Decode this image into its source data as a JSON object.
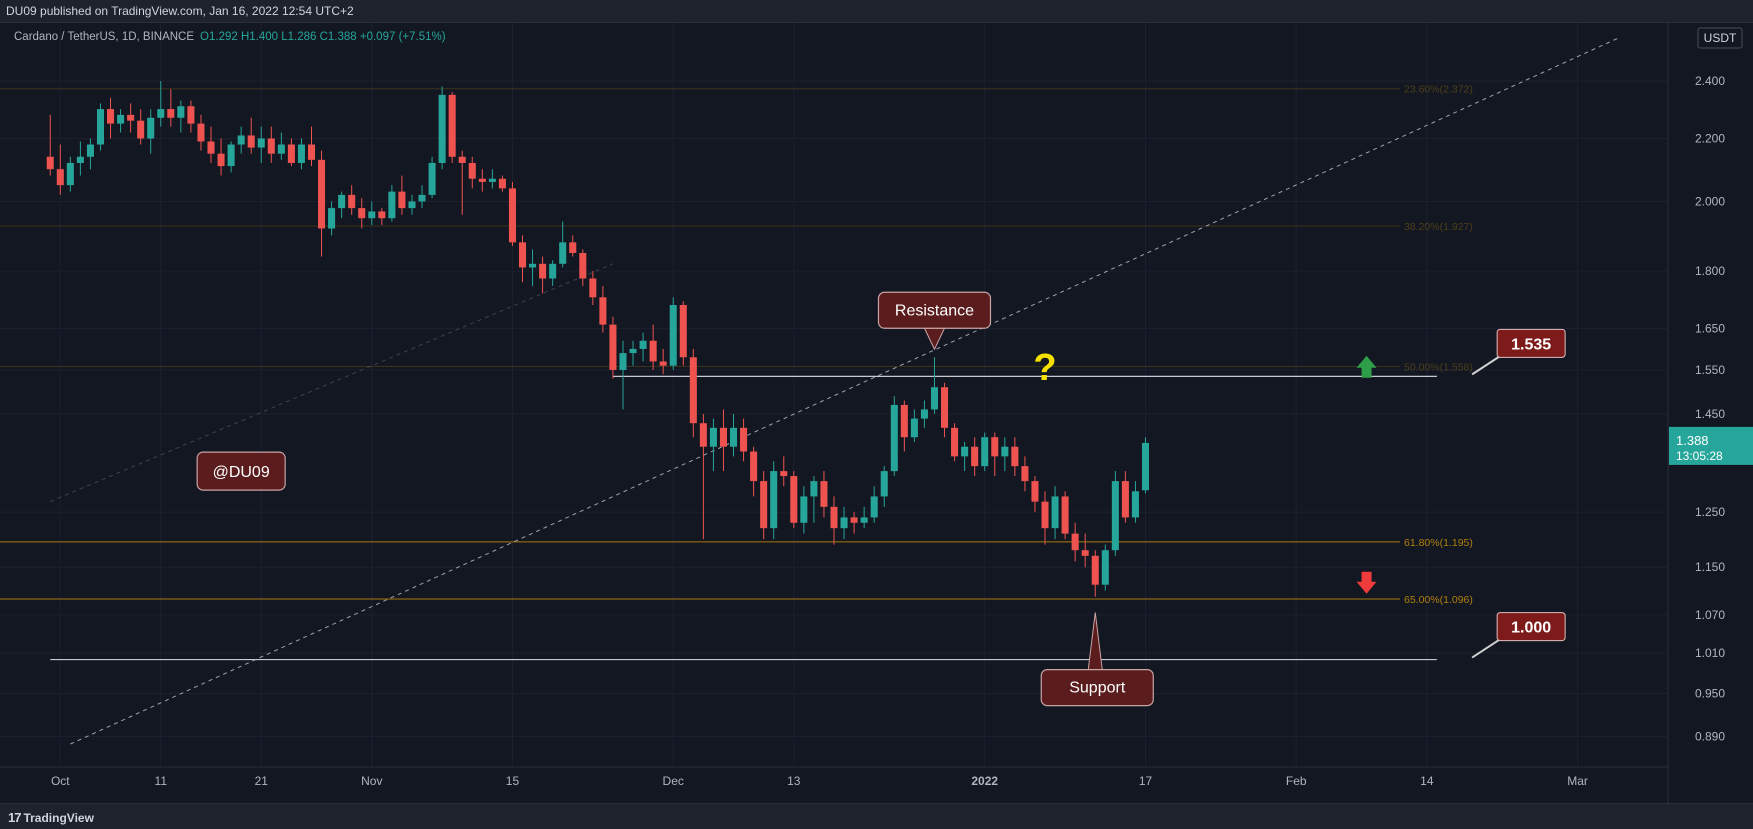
{
  "header": {
    "publish_line": "DU09 published on TradingView.com, Jan 16, 2022 12:54 UTC+2"
  },
  "footer": {
    "brand": "TradingView",
    "brand_mark": "17"
  },
  "colors": {
    "background": "#131722",
    "up": "#26a69a",
    "down": "#ef5350",
    "fib": "#b8860b",
    "text": "#b2b5be",
    "price_tag": "#26a69a",
    "callout_bg": "#5a1c1c",
    "callout_border": "#c9a4a4",
    "question": "#f5e000"
  },
  "chart_data": {
    "type": "candlestick",
    "symbol_line": {
      "symbol": "Cardano / TetherUS, 1D, BINANCE",
      "ohlc": "O1.292  H1.400  L1.286  C1.388  +0.097 (+7.51%)"
    },
    "currency": "USDT",
    "y_scale": "log",
    "y_range": [
      0.85,
      2.62
    ],
    "y_ticks": [
      "2.400",
      "2.200",
      "2.000",
      "1.800",
      "1.650",
      "1.550",
      "1.450",
      "1.250",
      "1.150",
      "1.070",
      "1.010",
      "0.950",
      "0.890"
    ],
    "x_ticks": [
      {
        "label": "Oct",
        "date": "2021-10-01"
      },
      {
        "label": "11",
        "date": "2021-10-11"
      },
      {
        "label": "21",
        "date": "2021-10-21"
      },
      {
        "label": "Nov",
        "date": "2021-11-01"
      },
      {
        "label": "15",
        "date": "2021-11-15"
      },
      {
        "label": "Dec",
        "date": "2021-12-01"
      },
      {
        "label": "13",
        "date": "2021-12-13"
      },
      {
        "label": "2022",
        "date": "2022-01-01"
      },
      {
        "label": "17",
        "date": "2022-01-17"
      },
      {
        "label": "Feb",
        "date": "2022-02-01"
      },
      {
        "label": "14",
        "date": "2022-02-14"
      },
      {
        "label": "Mar",
        "date": "2022-03-01"
      }
    ],
    "candles": [
      [
        "2021-09-30",
        2.14,
        2.28,
        2.08,
        2.1
      ],
      [
        "2021-10-01",
        2.1,
        2.18,
        2.02,
        2.05
      ],
      [
        "2021-10-02",
        2.05,
        2.14,
        2.03,
        2.12
      ],
      [
        "2021-10-03",
        2.12,
        2.19,
        2.08,
        2.14
      ],
      [
        "2021-10-04",
        2.14,
        2.2,
        2.1,
        2.18
      ],
      [
        "2021-10-05",
        2.18,
        2.32,
        2.16,
        2.3
      ],
      [
        "2021-10-06",
        2.3,
        2.34,
        2.2,
        2.25
      ],
      [
        "2021-10-07",
        2.25,
        2.3,
        2.22,
        2.28
      ],
      [
        "2021-10-08",
        2.28,
        2.32,
        2.22,
        2.26
      ],
      [
        "2021-10-09",
        2.26,
        2.3,
        2.18,
        2.2
      ],
      [
        "2021-10-10",
        2.2,
        2.3,
        2.15,
        2.27
      ],
      [
        "2021-10-11",
        2.27,
        2.4,
        2.24,
        2.3
      ],
      [
        "2021-10-12",
        2.3,
        2.37,
        2.24,
        2.27
      ],
      [
        "2021-10-13",
        2.27,
        2.33,
        2.22,
        2.31
      ],
      [
        "2021-10-14",
        2.31,
        2.33,
        2.22,
        2.25
      ],
      [
        "2021-10-15",
        2.25,
        2.28,
        2.16,
        2.19
      ],
      [
        "2021-10-16",
        2.19,
        2.24,
        2.12,
        2.15
      ],
      [
        "2021-10-17",
        2.15,
        2.2,
        2.08,
        2.11
      ],
      [
        "2021-10-18",
        2.11,
        2.19,
        2.09,
        2.18
      ],
      [
        "2021-10-19",
        2.18,
        2.24,
        2.15,
        2.21
      ],
      [
        "2021-10-20",
        2.21,
        2.27,
        2.15,
        2.17
      ],
      [
        "2021-10-21",
        2.17,
        2.24,
        2.12,
        2.2
      ],
      [
        "2021-10-22",
        2.2,
        2.24,
        2.12,
        2.15
      ],
      [
        "2021-10-23",
        2.15,
        2.22,
        2.13,
        2.18
      ],
      [
        "2021-10-24",
        2.18,
        2.2,
        2.11,
        2.12
      ],
      [
        "2021-10-25",
        2.12,
        2.2,
        2.1,
        2.18
      ],
      [
        "2021-10-26",
        2.18,
        2.24,
        2.11,
        2.13
      ],
      [
        "2021-10-27",
        2.13,
        2.16,
        1.84,
        1.92
      ],
      [
        "2021-10-28",
        1.92,
        2.0,
        1.9,
        1.98
      ],
      [
        "2021-10-29",
        1.98,
        2.03,
        1.95,
        2.02
      ],
      [
        "2021-10-30",
        2.02,
        2.05,
        1.96,
        1.98
      ],
      [
        "2021-10-31",
        1.98,
        2.01,
        1.92,
        1.95
      ],
      [
        "2021-11-01",
        1.95,
        2.0,
        1.93,
        1.97
      ],
      [
        "2021-11-02",
        1.97,
        1.98,
        1.93,
        1.95
      ],
      [
        "2021-11-03",
        1.95,
        2.05,
        1.94,
        2.03
      ],
      [
        "2021-11-04",
        2.03,
        2.08,
        1.96,
        1.98
      ],
      [
        "2021-11-05",
        1.98,
        2.02,
        1.96,
        2.0
      ],
      [
        "2021-11-06",
        2.0,
        2.05,
        1.98,
        2.02
      ],
      [
        "2021-11-07",
        2.02,
        2.14,
        2.01,
        2.12
      ],
      [
        "2021-11-08",
        2.12,
        2.38,
        2.1,
        2.35
      ],
      [
        "2021-11-09",
        2.35,
        2.36,
        2.12,
        2.14
      ],
      [
        "2021-11-10",
        2.14,
        2.16,
        1.96,
        2.12
      ],
      [
        "2021-11-11",
        2.12,
        2.14,
        2.04,
        2.07
      ],
      [
        "2021-11-12",
        2.07,
        2.1,
        2.03,
        2.06
      ],
      [
        "2021-11-13",
        2.06,
        2.1,
        2.04,
        2.07
      ],
      [
        "2021-11-14",
        2.07,
        2.08,
        2.03,
        2.04
      ],
      [
        "2021-11-15",
        2.04,
        2.06,
        1.87,
        1.88
      ],
      [
        "2021-11-16",
        1.88,
        1.9,
        1.77,
        1.81
      ],
      [
        "2021-11-17",
        1.81,
        1.86,
        1.76,
        1.82
      ],
      [
        "2021-11-18",
        1.82,
        1.84,
        1.74,
        1.78
      ],
      [
        "2021-11-19",
        1.78,
        1.83,
        1.76,
        1.82
      ],
      [
        "2021-11-20",
        1.82,
        1.94,
        1.81,
        1.88
      ],
      [
        "2021-11-21",
        1.88,
        1.9,
        1.84,
        1.85
      ],
      [
        "2021-11-22",
        1.85,
        1.86,
        1.76,
        1.78
      ],
      [
        "2021-11-23",
        1.78,
        1.8,
        1.71,
        1.73
      ],
      [
        "2021-11-24",
        1.73,
        1.76,
        1.64,
        1.66
      ],
      [
        "2021-11-25",
        1.66,
        1.68,
        1.53,
        1.55
      ],
      [
        "2021-11-26",
        1.55,
        1.62,
        1.46,
        1.59
      ],
      [
        "2021-11-27",
        1.59,
        1.62,
        1.56,
        1.6
      ],
      [
        "2021-11-28",
        1.6,
        1.64,
        1.57,
        1.62
      ],
      [
        "2021-11-29",
        1.62,
        1.66,
        1.55,
        1.57
      ],
      [
        "2021-11-30",
        1.57,
        1.6,
        1.54,
        1.56
      ],
      [
        "2021-12-01",
        1.56,
        1.73,
        1.55,
        1.71
      ],
      [
        "2021-12-02",
        1.71,
        1.72,
        1.56,
        1.58
      ],
      [
        "2021-12-03",
        1.58,
        1.6,
        1.4,
        1.43
      ],
      [
        "2021-12-04",
        1.43,
        1.45,
        1.2,
        1.38
      ],
      [
        "2021-12-05",
        1.38,
        1.44,
        1.33,
        1.42
      ],
      [
        "2021-12-06",
        1.42,
        1.46,
        1.33,
        1.38
      ],
      [
        "2021-12-07",
        1.38,
        1.45,
        1.36,
        1.42
      ],
      [
        "2021-12-08",
        1.42,
        1.44,
        1.35,
        1.37
      ],
      [
        "2021-12-09",
        1.37,
        1.38,
        1.28,
        1.31
      ],
      [
        "2021-12-10",
        1.31,
        1.33,
        1.2,
        1.22
      ],
      [
        "2021-12-11",
        1.22,
        1.35,
        1.2,
        1.33
      ],
      [
        "2021-12-12",
        1.33,
        1.36,
        1.3,
        1.32
      ],
      [
        "2021-12-13",
        1.32,
        1.33,
        1.22,
        1.23
      ],
      [
        "2021-12-14",
        1.23,
        1.3,
        1.21,
        1.28
      ],
      [
        "2021-12-15",
        1.28,
        1.32,
        1.23,
        1.31
      ],
      [
        "2021-12-16",
        1.31,
        1.33,
        1.24,
        1.26
      ],
      [
        "2021-12-17",
        1.26,
        1.28,
        1.19,
        1.22
      ],
      [
        "2021-12-18",
        1.22,
        1.26,
        1.2,
        1.24
      ],
      [
        "2021-12-19",
        1.24,
        1.25,
        1.21,
        1.23
      ],
      [
        "2021-12-20",
        1.23,
        1.26,
        1.22,
        1.24
      ],
      [
        "2021-12-21",
        1.24,
        1.3,
        1.23,
        1.28
      ],
      [
        "2021-12-22",
        1.28,
        1.34,
        1.26,
        1.33
      ],
      [
        "2021-12-23",
        1.33,
        1.49,
        1.32,
        1.47
      ],
      [
        "2021-12-24",
        1.47,
        1.48,
        1.37,
        1.4
      ],
      [
        "2021-12-25",
        1.4,
        1.46,
        1.39,
        1.44
      ],
      [
        "2021-12-26",
        1.44,
        1.48,
        1.42,
        1.46
      ],
      [
        "2021-12-27",
        1.46,
        1.58,
        1.45,
        1.51
      ],
      [
        "2021-12-28",
        1.51,
        1.52,
        1.4,
        1.42
      ],
      [
        "2021-12-29",
        1.42,
        1.43,
        1.35,
        1.36
      ],
      [
        "2021-12-30",
        1.36,
        1.39,
        1.33,
        1.38
      ],
      [
        "2021-12-31",
        1.38,
        1.4,
        1.32,
        1.34
      ],
      [
        "2022-01-01",
        1.34,
        1.41,
        1.33,
        1.4
      ],
      [
        "2022-01-02",
        1.4,
        1.41,
        1.32,
        1.36
      ],
      [
        "2022-01-03",
        1.36,
        1.4,
        1.33,
        1.38
      ],
      [
        "2022-01-04",
        1.38,
        1.4,
        1.32,
        1.34
      ],
      [
        "2022-01-05",
        1.34,
        1.36,
        1.29,
        1.31
      ],
      [
        "2022-01-06",
        1.31,
        1.32,
        1.25,
        1.27
      ],
      [
        "2022-01-07",
        1.27,
        1.29,
        1.19,
        1.22
      ],
      [
        "2022-01-08",
        1.22,
        1.3,
        1.2,
        1.28
      ],
      [
        "2022-01-09",
        1.28,
        1.29,
        1.2,
        1.21
      ],
      [
        "2022-01-10",
        1.21,
        1.23,
        1.16,
        1.18
      ],
      [
        "2022-01-11",
        1.18,
        1.21,
        1.15,
        1.17
      ],
      [
        "2022-01-12",
        1.17,
        1.18,
        1.1,
        1.12
      ],
      [
        "2022-01-13",
        1.12,
        1.19,
        1.11,
        1.18
      ],
      [
        "2022-01-14",
        1.18,
        1.33,
        1.17,
        1.31
      ],
      [
        "2022-01-15",
        1.31,
        1.33,
        1.23,
        1.24
      ],
      [
        "2022-01-16",
        1.24,
        1.31,
        1.23,
        1.29
      ],
      [
        "2022-01-17",
        1.292,
        1.4,
        1.286,
        1.388
      ]
    ],
    "fib_levels": [
      {
        "label": "23.60%(2.372)",
        "value": 2.372,
        "style": "faint"
      },
      {
        "label": "38.20%(1.927)",
        "value": 1.927,
        "style": "faint"
      },
      {
        "label": "50.00%(1.558)",
        "value": 1.558,
        "style": "faint"
      },
      {
        "label": "61.80%(1.195)",
        "value": 1.195,
        "style": "strong"
      },
      {
        "label": "65.00%(1.096)",
        "value": 1.096,
        "style": "strong"
      }
    ],
    "horizontal_lines": [
      {
        "value": 1.535,
        "from": "2021-11-25",
        "to": "2022-02-15"
      },
      {
        "value": 1.0,
        "from": "2021-09-30",
        "to": "2022-02-15"
      }
    ],
    "trend_line": {
      "from": [
        "2021-10-02",
        0.88
      ],
      "to": [
        "2022-03-05",
        2.56
      ]
    },
    "trend_line_upper": {
      "from": [
        "2021-09-30",
        1.27
      ],
      "to": [
        "2021-11-25",
        1.82
      ]
    },
    "annotations": {
      "resistance": {
        "text": "Resistance",
        "date": "2021-12-27",
        "value": 1.58
      },
      "support": {
        "text": "Support",
        "date": "2022-01-12",
        "value": 1.1
      },
      "watermark": {
        "text": "@DU09",
        "date": "2021-10-19",
        "value": 1.33
      },
      "question": {
        "text": "?",
        "date": "2022-01-07",
        "value": 1.555
      }
    },
    "price_tags": [
      {
        "text": "1.535",
        "date": "2022-02-20",
        "value": 1.535
      },
      {
        "text": "1.000",
        "date": "2022-02-20",
        "value": 1.0
      }
    ],
    "arrows": [
      {
        "direction": "up",
        "date": "2022-02-08",
        "value": 1.555
      },
      {
        "direction": "down",
        "date": "2022-02-08",
        "value": 1.125
      }
    ],
    "last_price": {
      "value": 1.388,
      "price": "1.388",
      "countdown": "13:05:28"
    }
  }
}
